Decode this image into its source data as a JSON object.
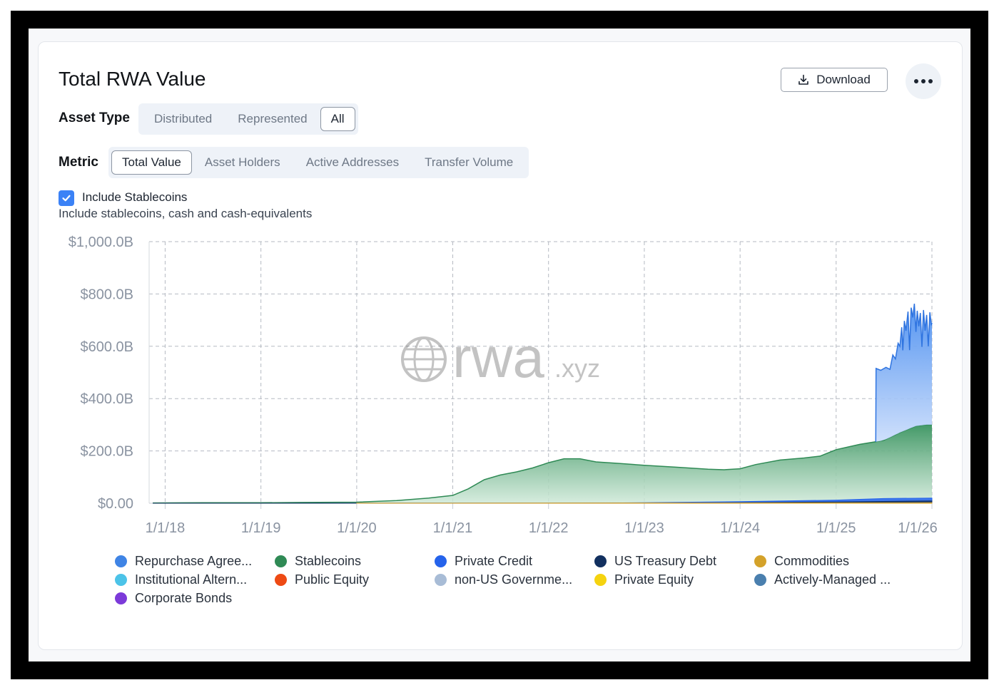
{
  "header": {
    "title": "Total RWA Value",
    "download_label": "Download"
  },
  "asset_type": {
    "label": "Asset Type",
    "options": [
      "Distributed",
      "Represented",
      "All"
    ],
    "selected": "All"
  },
  "metric": {
    "label": "Metric",
    "options": [
      "Total Value",
      "Asset Holders",
      "Active Addresses",
      "Transfer Volume"
    ],
    "selected": "Total Value"
  },
  "stablecoins_toggle": {
    "label": "Include Stablecoins",
    "description": "Include stablecoins, cash and cash-equivalents",
    "checked": true
  },
  "watermark": {
    "main": "rwa",
    "suffix": ".xyz"
  },
  "legend": [
    {
      "label": "Repurchase Agree...",
      "color": "#3f84e5"
    },
    {
      "label": "Stablecoins",
      "color": "#2f8a55"
    },
    {
      "label": "Private Credit",
      "color": "#2563eb"
    },
    {
      "label": "US Treasury Debt",
      "color": "#12305f"
    },
    {
      "label": "Commodities",
      "color": "#d4a22a"
    },
    {
      "label": "Institutional Altern...",
      "color": "#4cc3e8"
    },
    {
      "label": "Public Equity",
      "color": "#ee4a14"
    },
    {
      "label": "non-US Governme...",
      "color": "#a8bcd6"
    },
    {
      "label": "Private Equity",
      "color": "#f5d30f"
    },
    {
      "label": "Actively-Managed ...",
      "color": "#4a7fae"
    },
    {
      "label": "Corporate Bonds",
      "color": "#7c3ad9"
    }
  ],
  "chart_data": {
    "type": "area",
    "stacked": true,
    "x_axis": {
      "type": "date",
      "ticks": [
        "1/1/18",
        "1/1/19",
        "1/1/20",
        "1/1/21",
        "1/1/22",
        "1/1/23",
        "1/1/24",
        "1/1/25",
        "1/1/26"
      ],
      "range": [
        "2017-11-01",
        "2026-01-01"
      ]
    },
    "y_axis": {
      "ticks": [
        "$0.00",
        "$200.0B",
        "$400.0B",
        "$600.0B",
        "$800.0B",
        "$1,000.0B"
      ],
      "range": [
        0,
        1000
      ],
      "unit": "B USD"
    },
    "grid": true,
    "legend_position": "bottom",
    "series": [
      {
        "name": "Stablecoins",
        "color": "#2f8a55",
        "points": [
          [
            "2017-11-15",
            1
          ],
          [
            "2018-06-01",
            2
          ],
          [
            "2019-01-01",
            2
          ],
          [
            "2019-06-01",
            3
          ],
          [
            "2020-01-01",
            4
          ],
          [
            "2020-06-01",
            10
          ],
          [
            "2020-10-01",
            20
          ],
          [
            "2021-01-01",
            30
          ],
          [
            "2021-03-01",
            55
          ],
          [
            "2021-05-01",
            90
          ],
          [
            "2021-07-01",
            108
          ],
          [
            "2021-09-01",
            120
          ],
          [
            "2021-11-01",
            135
          ],
          [
            "2022-01-01",
            155
          ],
          [
            "2022-03-01",
            170
          ],
          [
            "2022-05-01",
            170
          ],
          [
            "2022-07-01",
            158
          ],
          [
            "2022-10-01",
            152
          ],
          [
            "2023-01-01",
            145
          ],
          [
            "2023-05-01",
            138
          ],
          [
            "2023-09-01",
            130
          ],
          [
            "2023-11-01",
            128
          ],
          [
            "2024-01-01",
            132
          ],
          [
            "2024-03-01",
            148
          ],
          [
            "2024-06-01",
            165
          ],
          [
            "2024-09-01",
            173
          ],
          [
            "2024-11-01",
            180
          ],
          [
            "2025-01-01",
            205
          ],
          [
            "2025-04-01",
            225
          ],
          [
            "2025-07-01",
            240
          ],
          [
            "2025-09-01",
            270
          ],
          [
            "2025-11-01",
            295
          ],
          [
            "2025-12-10",
            300
          ],
          [
            "2026-01-01",
            300
          ]
        ]
      },
      {
        "name": "Private Credit",
        "color": "#2563eb",
        "points": [
          [
            "2017-11-15",
            0
          ],
          [
            "2022-07-01",
            0.5
          ],
          [
            "2023-01-01",
            2
          ],
          [
            "2024-01-01",
            6
          ],
          [
            "2025-01-01",
            12
          ],
          [
            "2025-07-01",
            18
          ],
          [
            "2026-01-01",
            20
          ]
        ]
      },
      {
        "name": "US Treasury Debt",
        "color": "#12305f",
        "points": [
          [
            "2017-11-15",
            0
          ],
          [
            "2023-01-01",
            0.5
          ],
          [
            "2024-01-01",
            2
          ],
          [
            "2025-01-01",
            5
          ],
          [
            "2026-01-01",
            9
          ]
        ]
      },
      {
        "name": "Repurchase Agree...",
        "color": "#3f84e5",
        "points": [
          [
            "2025-06-01",
            0
          ],
          [
            "2025-06-02",
            280
          ],
          [
            "2025-06-20",
            270
          ],
          [
            "2025-07-10",
            275
          ],
          [
            "2025-07-25",
            260
          ],
          [
            "2025-08-05",
            310
          ],
          [
            "2025-08-15",
            290
          ],
          [
            "2025-08-25",
            345
          ],
          [
            "2025-09-01",
            330
          ],
          [
            "2025-09-08",
            400
          ],
          [
            "2025-09-12",
            310
          ],
          [
            "2025-09-18",
            420
          ],
          [
            "2025-09-24",
            380
          ],
          [
            "2025-10-02",
            450
          ],
          [
            "2025-10-08",
            300
          ],
          [
            "2025-10-14",
            460
          ],
          [
            "2025-10-20",
            420
          ],
          [
            "2025-10-26",
            470
          ],
          [
            "2025-11-01",
            360
          ],
          [
            "2025-11-06",
            440
          ],
          [
            "2025-11-12",
            380
          ],
          [
            "2025-11-18",
            430
          ],
          [
            "2025-11-24",
            300
          ],
          [
            "2025-11-30",
            440
          ],
          [
            "2025-12-06",
            360
          ],
          [
            "2025-12-12",
            420
          ],
          [
            "2025-12-18",
            300
          ],
          [
            "2025-12-24",
            430
          ],
          [
            "2025-12-30",
            380
          ],
          [
            "2026-01-01",
            390
          ]
        ]
      },
      {
        "name": "Commodities",
        "color": "#d4a22a",
        "points": [
          [
            "2020-01-01",
            0.2
          ],
          [
            "2024-01-01",
            1
          ],
          [
            "2026-01-01",
            2
          ]
        ]
      }
    ]
  }
}
